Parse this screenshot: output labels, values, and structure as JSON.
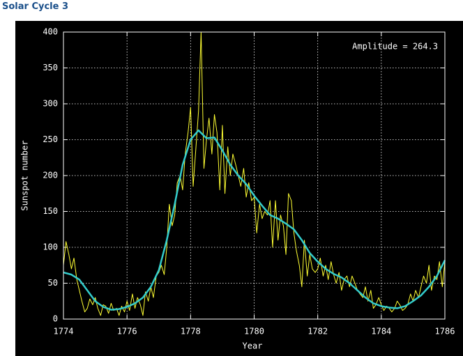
{
  "heading": "Solar Cycle 3",
  "chart_data": {
    "type": "line",
    "xlabel": "Year",
    "ylabel": "Sunspot number",
    "annotation": "Amplitude = 264.3",
    "xlim": [
      1774,
      1786
    ],
    "xticks": [
      1774,
      1776,
      1778,
      1780,
      1782,
      1784,
      1786
    ],
    "ylim": [
      0,
      400
    ],
    "yticks": [
      0,
      50,
      100,
      150,
      200,
      250,
      300,
      350,
      400
    ],
    "grid": true,
    "series": [
      {
        "color": "#ffff33",
        "x": [
          1774,
          1774.08,
          1774.17,
          1774.25,
          1774.33,
          1774.42,
          1774.5,
          1774.58,
          1774.67,
          1774.75,
          1774.83,
          1774.92,
          1775,
          1775.08,
          1775.17,
          1775.25,
          1775.33,
          1775.42,
          1775.5,
          1775.58,
          1775.67,
          1775.75,
          1775.83,
          1775.92,
          1776,
          1776.08,
          1776.17,
          1776.25,
          1776.33,
          1776.42,
          1776.5,
          1776.58,
          1776.67,
          1776.75,
          1776.83,
          1776.92,
          1777,
          1777.08,
          1777.17,
          1777.25,
          1777.33,
          1777.42,
          1777.5,
          1777.58,
          1777.67,
          1777.75,
          1777.83,
          1777.92,
          1778,
          1778.08,
          1778.17,
          1778.25,
          1778.33,
          1778.42,
          1778.5,
          1778.58,
          1778.67,
          1778.75,
          1778.83,
          1778.92,
          1779,
          1779.08,
          1779.17,
          1779.25,
          1779.33,
          1779.42,
          1779.5,
          1779.58,
          1779.67,
          1779.75,
          1779.83,
          1779.92,
          1780,
          1780.08,
          1780.17,
          1780.25,
          1780.33,
          1780.42,
          1780.5,
          1780.58,
          1780.67,
          1780.75,
          1780.83,
          1780.92,
          1781,
          1781.08,
          1781.17,
          1781.25,
          1781.33,
          1781.42,
          1781.5,
          1781.58,
          1781.67,
          1781.75,
          1781.83,
          1781.92,
          1782,
          1782.08,
          1782.17,
          1782.25,
          1782.33,
          1782.42,
          1782.5,
          1782.58,
          1782.67,
          1782.75,
          1782.83,
          1782.92,
          1783,
          1783.08,
          1783.17,
          1783.25,
          1783.33,
          1783.42,
          1783.5,
          1783.58,
          1783.67,
          1783.75,
          1783.83,
          1783.92,
          1784,
          1784.08,
          1784.17,
          1784.25,
          1784.33,
          1784.42,
          1784.5,
          1784.58,
          1784.67,
          1784.75,
          1784.83,
          1784.92,
          1785,
          1785.08,
          1785.17,
          1785.25,
          1785.33,
          1785.42,
          1785.5,
          1785.58,
          1785.67,
          1785.75,
          1785.83,
          1785.92,
          1786
        ],
        "values": [
          75,
          108,
          90,
          70,
          85,
          55,
          40,
          25,
          10,
          15,
          28,
          20,
          30,
          15,
          5,
          20,
          18,
          8,
          22,
          12,
          15,
          5,
          18,
          10,
          25,
          12,
          35,
          15,
          30,
          20,
          5,
          38,
          25,
          45,
          30,
          60,
          65,
          75,
          62,
          100,
          160,
          130,
          145,
          190,
          200,
          180,
          230,
          260,
          295,
          185,
          240,
          290,
          400,
          210,
          250,
          280,
          230,
          285,
          260,
          180,
          270,
          175,
          240,
          200,
          230,
          215,
          200,
          185,
          210,
          170,
          190,
          165,
          170,
          120,
          160,
          140,
          150,
          145,
          165,
          100,
          165,
          110,
          145,
          130,
          90,
          175,
          165,
          120,
          95,
          75,
          45,
          110,
          60,
          90,
          70,
          65,
          70,
          85,
          60,
          75,
          55,
          80,
          62,
          50,
          65,
          40,
          55,
          60,
          45,
          60,
          50,
          40,
          35,
          30,
          45,
          25,
          40,
          15,
          20,
          30,
          20,
          12,
          18,
          15,
          10,
          15,
          25,
          20,
          12,
          15,
          20,
          35,
          25,
          40,
          30,
          45,
          60,
          50,
          75,
          40,
          60,
          55,
          80,
          45,
          80
        ]
      },
      {
        "color": "#33cccc",
        "x": [
          1774,
          1774.25,
          1774.5,
          1774.75,
          1775,
          1775.25,
          1775.5,
          1775.75,
          1776,
          1776.25,
          1776.5,
          1776.75,
          1777,
          1777.25,
          1777.5,
          1777.75,
          1778,
          1778.25,
          1778.5,
          1778.75,
          1779,
          1779.25,
          1779.5,
          1779.75,
          1780,
          1780.25,
          1780.5,
          1780.75,
          1781,
          1781.25,
          1781.5,
          1781.75,
          1782,
          1782.25,
          1782.5,
          1782.75,
          1783,
          1783.25,
          1783.5,
          1783.75,
          1784,
          1784.25,
          1784.5,
          1784.75,
          1785,
          1785.25,
          1785.5,
          1785.75,
          1786
        ],
        "values": [
          65,
          62,
          55,
          40,
          25,
          17,
          13,
          14,
          17,
          22,
          30,
          45,
          68,
          110,
          160,
          215,
          250,
          263,
          252,
          253,
          235,
          215,
          200,
          188,
          172,
          158,
          145,
          140,
          133,
          125,
          110,
          92,
          80,
          70,
          63,
          58,
          50,
          40,
          30,
          22,
          18,
          16,
          15,
          18,
          25,
          33,
          45,
          60,
          82
        ]
      }
    ]
  }
}
